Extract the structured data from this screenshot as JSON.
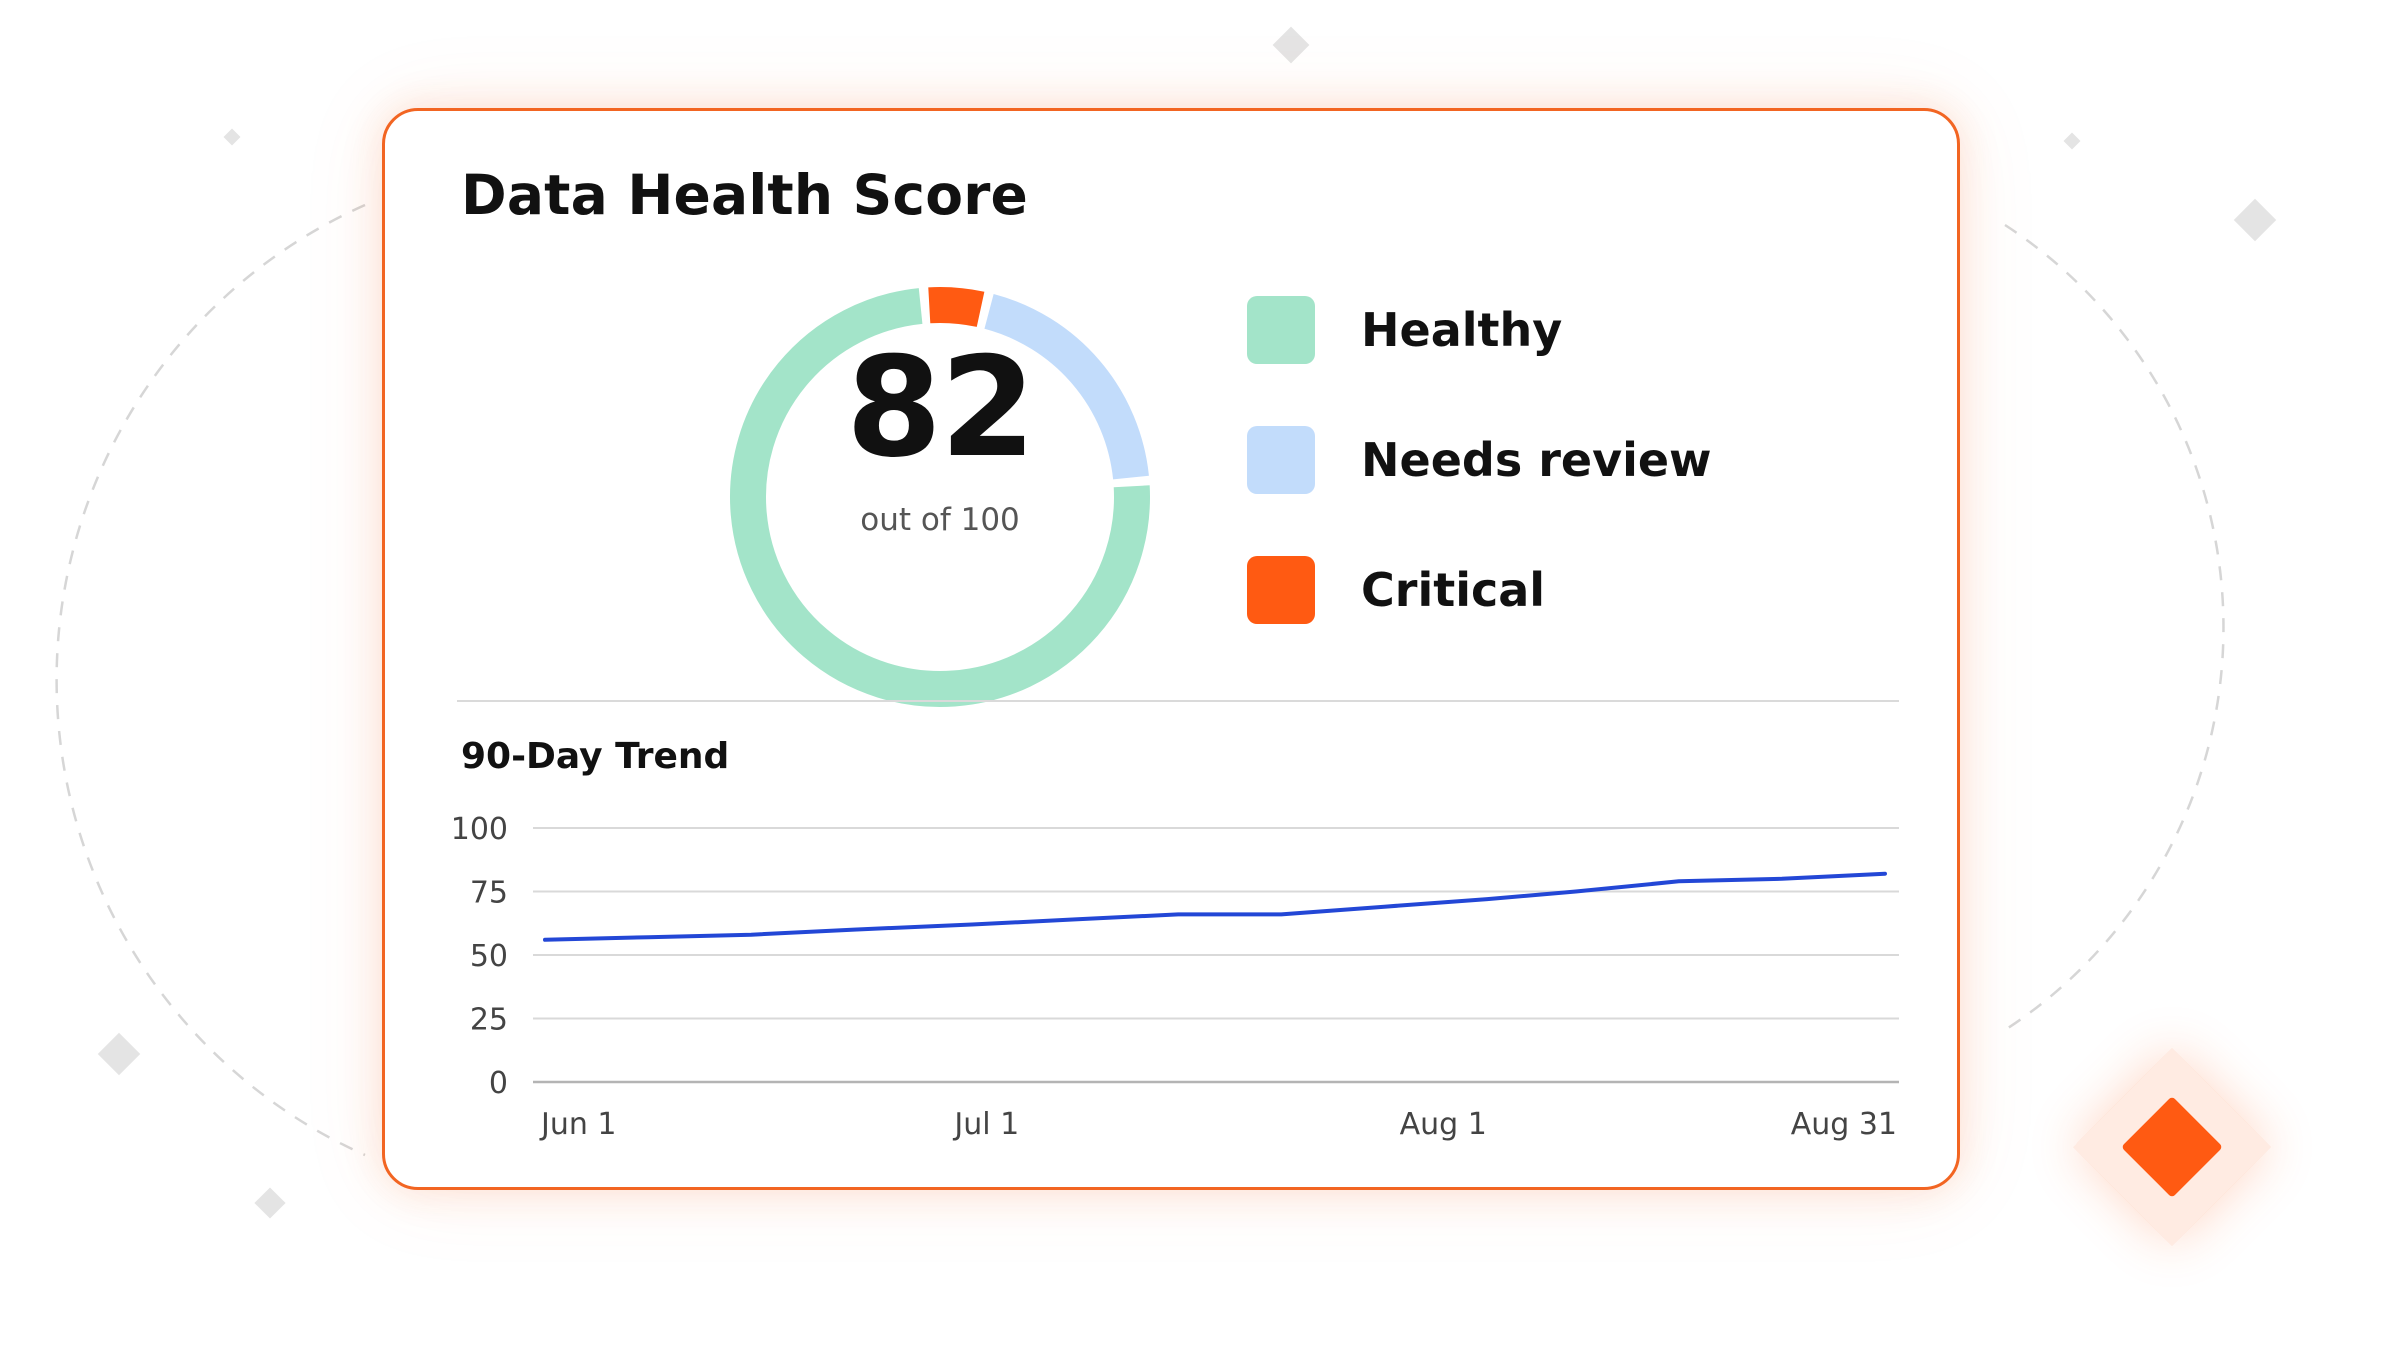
{
  "card": {
    "title": "Data Health Score",
    "accent_color": "#f26522"
  },
  "score": {
    "value": "82",
    "caption": "out of 100"
  },
  "legend": [
    {
      "label": "Healthy",
      "color": "#a3e4c9"
    },
    {
      "label": "Needs review",
      "color": "#c2dcfb"
    },
    {
      "label": "Critical",
      "color": "#ff5a12"
    }
  ],
  "chart_data": [
    {
      "type": "pie",
      "variant": "donut",
      "title": "",
      "series": [
        {
          "name": "Healthy",
          "value": 75,
          "color": "#a3e4c9"
        },
        {
          "name": "Needs review",
          "value": 20,
          "color": "#c2dcfb"
        },
        {
          "name": "Critical",
          "value": 5,
          "color": "#ff5a12"
        }
      ]
    },
    {
      "type": "line",
      "title": "90-Day Trend",
      "xlabel": "",
      "ylabel": "",
      "x_ticks": [
        "Jun 1",
        "Jul 1",
        "Aug 1",
        "Aug 31"
      ],
      "y_ticks": [
        "100",
        "75",
        "50",
        "25",
        "0"
      ],
      "ylim": [
        0,
        100
      ],
      "grid": true,
      "line_color": "#2347d6",
      "x": [
        "2024-06-01",
        "2024-06-08",
        "2024-06-15",
        "2024-06-22",
        "2024-06-30",
        "2024-07-07",
        "2024-07-14",
        "2024-07-21",
        "2024-07-28",
        "2024-08-04",
        "2024-08-10",
        "2024-08-17",
        "2024-08-24",
        "2024-08-31"
      ],
      "values": [
        56,
        57,
        58,
        60,
        62,
        64,
        66,
        66,
        69,
        72,
        75,
        79,
        80,
        82
      ]
    }
  ]
}
